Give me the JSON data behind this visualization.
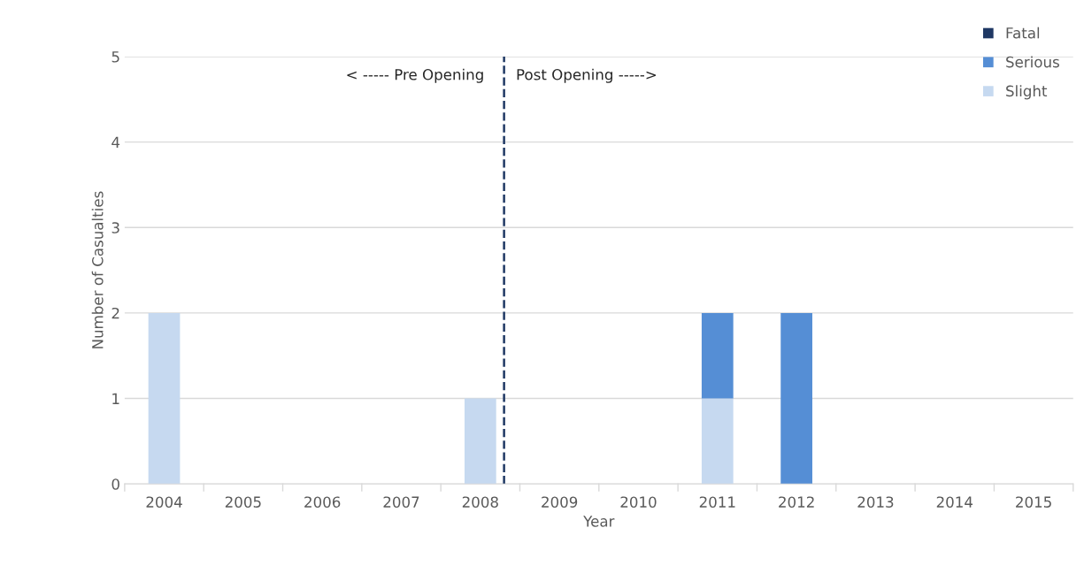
{
  "chart_data": {
    "type": "bar",
    "stacked": true,
    "xlabel": "Year",
    "ylabel": "Number of Casualties",
    "categories": [
      "2004",
      "2005",
      "2006",
      "2007",
      "2008",
      "2009",
      "2010",
      "2011",
      "2012",
      "2013",
      "2014",
      "2015"
    ],
    "series": [
      {
        "name": "Slight",
        "color": "#c6d9f0",
        "values": [
          2,
          0,
          0,
          0,
          1,
          0,
          0,
          1,
          0,
          0,
          0,
          0
        ]
      },
      {
        "name": "Serious",
        "color": "#558ed5",
        "values": [
          0,
          0,
          0,
          0,
          0,
          0,
          0,
          1,
          2,
          0,
          0,
          0
        ]
      },
      {
        "name": "Fatal",
        "color": "#1f3864",
        "values": [
          0,
          0,
          0,
          0,
          0,
          0,
          0,
          0,
          0,
          0,
          0,
          0
        ]
      }
    ],
    "ylim": [
      0,
      5
    ],
    "yticks": [
      0,
      1,
      2,
      3,
      4,
      5
    ],
    "grid": "y",
    "legend": "top right",
    "ref_lines": [
      {
        "axis": "x",
        "value": "2008",
        "color": "#1f3864",
        "line_style": "dashed"
      }
    ],
    "annotations": [
      "< ----- Pre Opening",
      "Post Opening ----->"
    ]
  }
}
